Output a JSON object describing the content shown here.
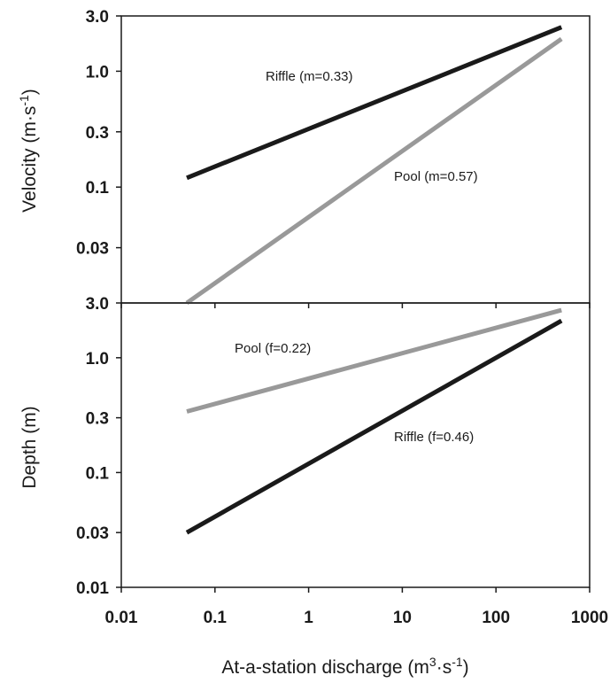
{
  "chart_data": [
    {
      "type": "line",
      "panel": "top",
      "ylabel": "Velocity (m·s",
      "ylabel_sup": "-1",
      "ylabel_end": ")",
      "xscale": "log",
      "yscale": "log",
      "xlim": [
        0.01,
        1000
      ],
      "ylim": [
        0.01,
        3.0
      ],
      "yticks": [
        0.03,
        0.1,
        0.3,
        1.0,
        3.0
      ],
      "ytick_labels": [
        "0.03",
        "0.1",
        "0.3",
        "1.0",
        "3.0"
      ],
      "grid": false,
      "series": [
        {
          "name": "Riffle (m=0.33)",
          "color": "#1a1a1a",
          "x": [
            0.05,
            500
          ],
          "y": [
            0.12,
            2.4
          ]
        },
        {
          "name": "Pool (m=0.57)",
          "color": "#999999",
          "x": [
            0.05,
            500
          ],
          "y": [
            0.01,
            1.9
          ]
        }
      ]
    },
    {
      "type": "line",
      "panel": "bottom",
      "ylabel": "Depth (m)",
      "xlabel": "At-a-station discharge (m",
      "xlabel_sup1": "3",
      "xlabel_mid": "·s",
      "xlabel_sup2": "-1",
      "xlabel_end": ")",
      "xscale": "log",
      "yscale": "log",
      "xlim": [
        0.01,
        1000
      ],
      "ylim": [
        0.01,
        3.0
      ],
      "xticks": [
        0.01,
        0.1,
        1,
        10,
        100,
        1000
      ],
      "xtick_labels": [
        "0.01",
        "0.1",
        "1",
        "10",
        "100",
        "1000"
      ],
      "yticks": [
        0.01,
        0.03,
        0.1,
        0.3,
        1.0,
        3.0
      ],
      "ytick_labels": [
        "0.01",
        "0.03",
        "0.1",
        "0.3",
        "1.0",
        "3.0"
      ],
      "grid": false,
      "series": [
        {
          "name": "Pool (f=0.22)",
          "color": "#999999",
          "x": [
            0.05,
            500
          ],
          "y": [
            0.34,
            2.6
          ]
        },
        {
          "name": "Riffle (f=0.46)",
          "color": "#1a1a1a",
          "x": [
            0.05,
            500
          ],
          "y": [
            0.03,
            2.1
          ]
        }
      ]
    }
  ]
}
